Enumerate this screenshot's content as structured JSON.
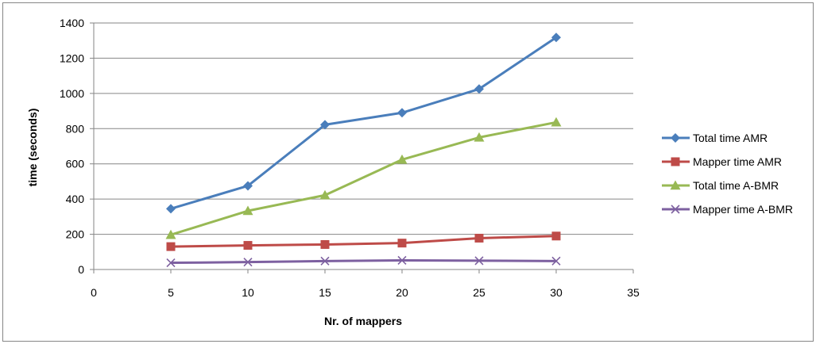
{
  "chart_data": {
    "type": "line",
    "xlabel": "Nr. of mappers",
    "ylabel": "time (seconds)",
    "xlim": [
      0,
      35
    ],
    "ylim": [
      0,
      1400
    ],
    "x_ticks": [
      "0",
      "5",
      "10",
      "15",
      "20",
      "25",
      "30",
      "35"
    ],
    "y_ticks": [
      "0",
      "200",
      "400",
      "600",
      "800",
      "1000",
      "1200",
      "1400"
    ],
    "grid": "horizontal",
    "legend_position": "right",
    "x": [
      5,
      10,
      15,
      20,
      25,
      30
    ],
    "series": [
      {
        "name": "Total time AMR",
        "values": [
          345,
          475,
          822,
          890,
          1025,
          1318
        ],
        "color": "#4a7ebb",
        "marker": "diamond"
      },
      {
        "name": "Mapper time AMR",
        "values": [
          130,
          137,
          142,
          150,
          178,
          190
        ],
        "color": "#be4b48",
        "marker": "square"
      },
      {
        "name": "Total time A-BMR",
        "values": [
          197,
          333,
          422,
          624,
          750,
          836
        ],
        "color": "#98b954",
        "marker": "triangle"
      },
      {
        "name": "Mapper time A-BMR",
        "values": [
          38,
          42,
          48,
          52,
          50,
          48
        ],
        "color": "#7d60a0",
        "marker": "x"
      }
    ]
  }
}
